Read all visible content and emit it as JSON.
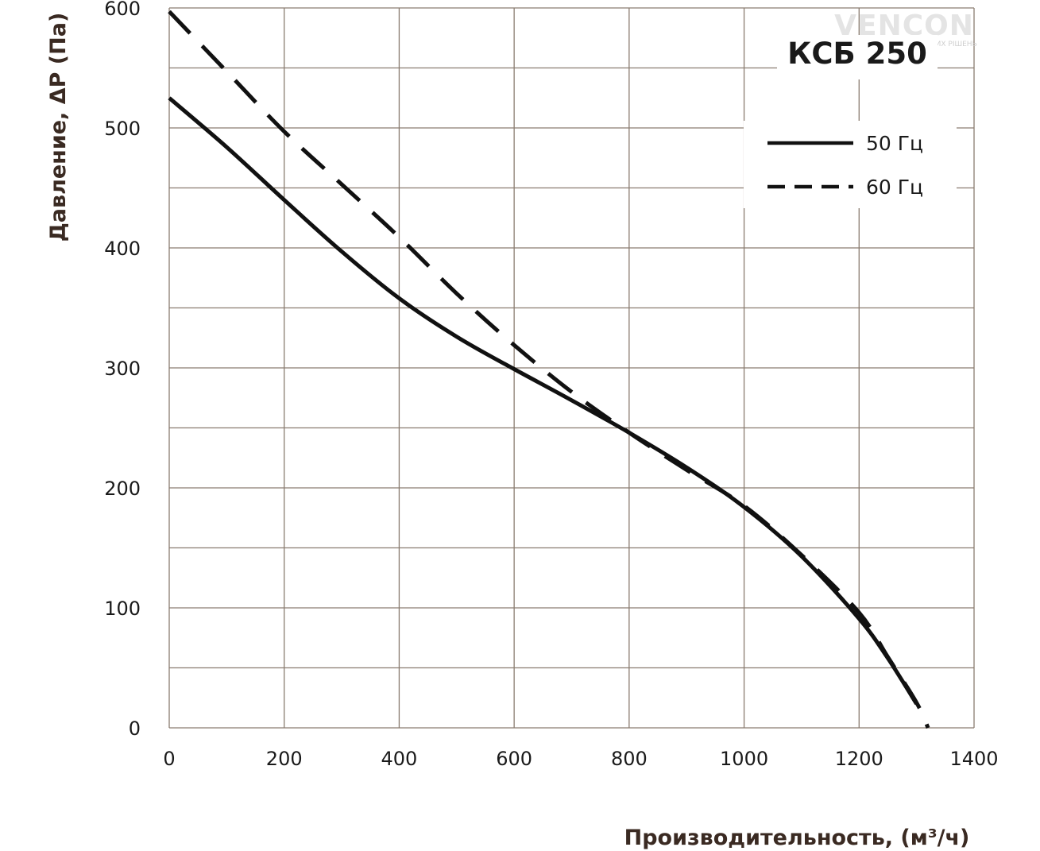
{
  "logo": {
    "name": "VENCON",
    "tagline": "ЕКСПЕРТ ЕНЕРГОЕФЕКТИВНИХ РІШЕНЬ"
  },
  "colors": {
    "grid": "#8a7c70",
    "curve": "#111111",
    "axis_title": "#3a2a22"
  },
  "chart_data": {
    "type": "line",
    "title": "КСБ 250",
    "xlabel": "Производительность, (м³/ч)",
    "ylabel": "Давление, ΔP (Па)",
    "xlim": [
      0,
      1400
    ],
    "ylim": [
      0,
      600
    ],
    "x_ticks": [
      0,
      200,
      400,
      600,
      800,
      1000,
      1200,
      1400
    ],
    "y_ticks": [
      0,
      100,
      200,
      300,
      400,
      500,
      600
    ],
    "x_minor_step": 200,
    "y_minor_step": 50,
    "grid": true,
    "legend_position": "top-right",
    "series": [
      {
        "name": "50 Гц",
        "style": "solid",
        "x": [
          0,
          100,
          200,
          300,
          400,
          500,
          600,
          700,
          800,
          900,
          1000,
          1100,
          1200,
          1250,
          1300
        ],
        "y": [
          525,
          484,
          440,
          397,
          358,
          326,
          299,
          273,
          246,
          217,
          184,
          143,
          91,
          58,
          20
        ]
      },
      {
        "name": "60 Гц",
        "style": "dashed",
        "x": [
          0,
          100,
          200,
          300,
          400,
          500,
          600,
          700,
          800,
          900,
          1000,
          1100,
          1200,
          1250,
          1300,
          1320
        ],
        "y": [
          597,
          547,
          497,
          453,
          409,
          362,
          319,
          280,
          246,
          215,
          185,
          144,
          96,
          59,
          21,
          0
        ]
      }
    ]
  }
}
